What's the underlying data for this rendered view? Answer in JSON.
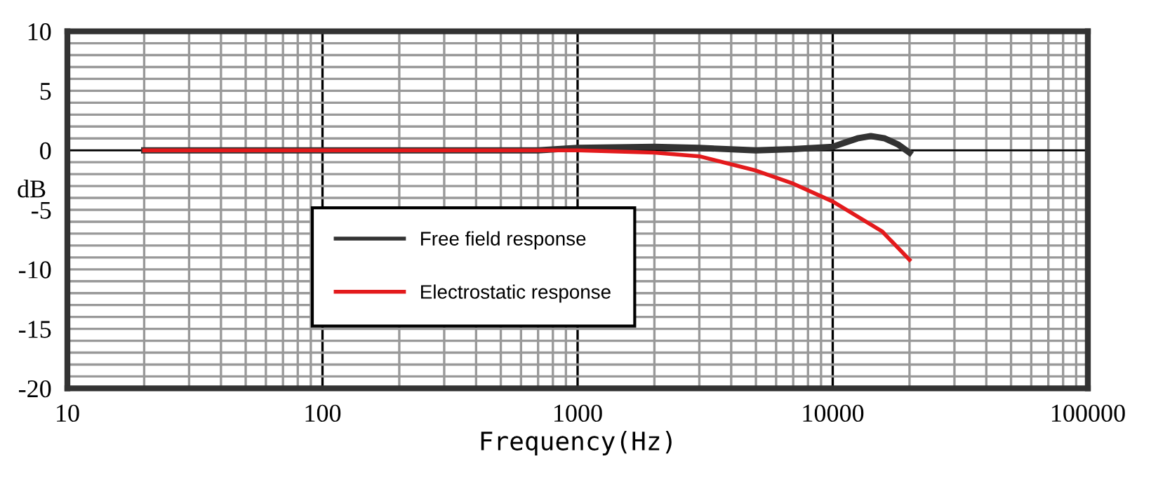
{
  "chart_data": {
    "type": "line",
    "xlabel": "Frequency(Hz)",
    "ylabel": "dB",
    "log": "x",
    "xlim": [
      10,
      100000
    ],
    "ylim": [
      -20,
      10
    ],
    "xticks": [
      10,
      100,
      1000,
      10000,
      100000
    ],
    "yticks": [
      -20,
      -15,
      -10,
      -5,
      0,
      5,
      10
    ],
    "grid": true,
    "legend": "center",
    "line_style": "solid",
    "marker": "none",
    "ref_lines": [
      {
        "axis": "y",
        "value": 0,
        "color": "#000000"
      }
    ],
    "series": [
      {
        "name": "Free field response",
        "color": "#333333",
        "x": [
          20,
          100,
          700,
          1000,
          2000,
          3000,
          5000,
          7000,
          10000,
          11000,
          12500,
          14100,
          16000,
          18000,
          20000
        ],
        "values": [
          0,
          0,
          0,
          0.2,
          0.3,
          0.2,
          0,
          0.1,
          0.3,
          0.6,
          1.0,
          1.2,
          1.0,
          0.5,
          -0.2
        ]
      },
      {
        "name": "Electrostatic response",
        "color": "#e31a1c",
        "x": [
          20,
          100,
          700,
          1000,
          2000,
          3000,
          5000,
          7000,
          10000,
          15600,
          20000
        ],
        "values": [
          0,
          0,
          0,
          0,
          -0.2,
          -0.5,
          -1.7,
          -2.8,
          -4.3,
          -6.8,
          -9.2
        ]
      }
    ]
  }
}
